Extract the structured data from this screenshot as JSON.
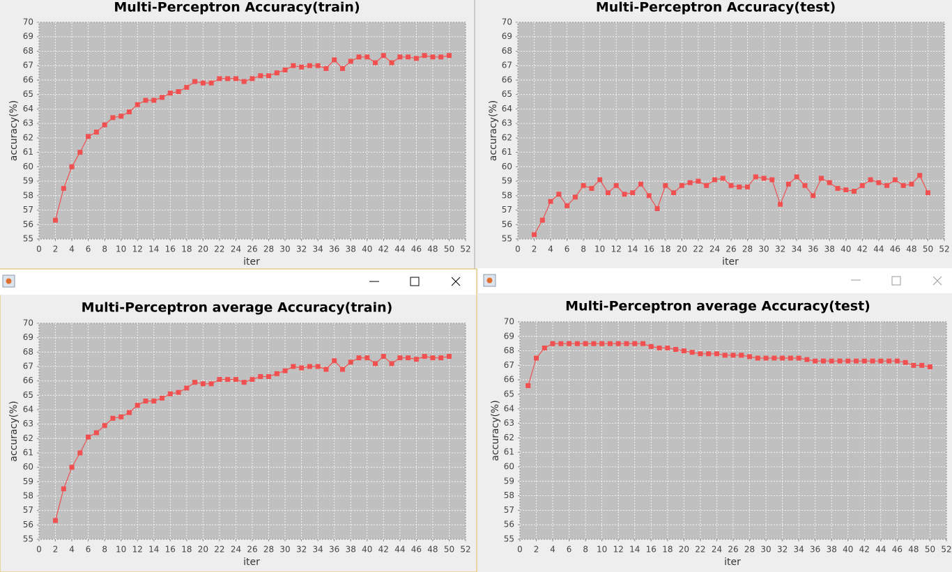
{
  "chart_data": [
    {
      "type": "line",
      "title": "Multi-Perceptron Accuracy(train)",
      "x_label": "iter",
      "y_label": "accuracy(%)",
      "x": [
        2,
        3,
        4,
        5,
        6,
        7,
        8,
        9,
        10,
        11,
        12,
        13,
        14,
        15,
        16,
        17,
        18,
        19,
        20,
        21,
        22,
        23,
        24,
        25,
        26,
        27,
        28,
        29,
        30,
        31,
        32,
        33,
        34,
        35,
        36,
        37,
        38,
        39,
        40,
        41,
        42,
        43,
        44,
        45,
        46,
        47,
        48,
        49,
        50
      ],
      "values": [
        56.3,
        58.5,
        60.0,
        61.0,
        62.1,
        62.4,
        62.9,
        63.4,
        63.5,
        63.8,
        64.3,
        64.6,
        64.6,
        64.8,
        65.1,
        65.2,
        65.5,
        65.9,
        65.8,
        65.8,
        66.1,
        66.1,
        66.1,
        65.9,
        66.1,
        66.3,
        66.3,
        66.5,
        66.7,
        67.0,
        66.9,
        67.0,
        67.0,
        66.8,
        67.4,
        66.8,
        67.3,
        67.6,
        67.6,
        67.2,
        67.7,
        67.2,
        67.6,
        67.6,
        67.5,
        67.7,
        67.6,
        67.6,
        67.7
      ],
      "color": "#f05050",
      "xlim": [
        0,
        52
      ],
      "ylim": [
        55,
        70
      ],
      "xticks": [
        0,
        2,
        4,
        6,
        8,
        10,
        12,
        14,
        16,
        18,
        20,
        22,
        24,
        26,
        28,
        30,
        32,
        34,
        36,
        38,
        40,
        42,
        44,
        46,
        48,
        50,
        52
      ],
      "yticks": [
        55,
        56,
        57,
        58,
        59,
        60,
        61,
        62,
        63,
        64,
        65,
        66,
        67,
        68,
        69,
        70
      ],
      "grid": true
    },
    {
      "type": "line",
      "title": "Multi-Perceptron Accuracy(test)",
      "x_label": "iter",
      "y_label": "accuracy(%)",
      "x": [
        2,
        3,
        4,
        5,
        6,
        7,
        8,
        9,
        10,
        11,
        12,
        13,
        14,
        15,
        16,
        17,
        18,
        19,
        20,
        21,
        22,
        23,
        24,
        25,
        26,
        27,
        28,
        29,
        30,
        31,
        32,
        33,
        34,
        35,
        36,
        37,
        38,
        39,
        40,
        41,
        42,
        43,
        44,
        45,
        46,
        47,
        48,
        49,
        50
      ],
      "values": [
        55.3,
        56.3,
        57.6,
        58.1,
        57.3,
        57.9,
        58.7,
        58.5,
        59.1,
        58.2,
        58.7,
        58.1,
        58.2,
        58.8,
        58.0,
        57.1,
        58.7,
        58.2,
        58.7,
        58.9,
        59.0,
        58.7,
        59.1,
        59.2,
        58.7,
        58.6,
        58.6,
        59.3,
        59.2,
        59.1,
        57.4,
        58.8,
        59.3,
        58.7,
        58.0,
        59.2,
        58.9,
        58.5,
        58.4,
        58.3,
        58.7,
        59.1,
        58.9,
        58.7,
        59.1,
        58.7,
        58.8,
        59.4,
        58.2
      ],
      "color": "#f05050",
      "xlim": [
        0,
        52
      ],
      "ylim": [
        55,
        70
      ],
      "xticks": [
        0,
        2,
        4,
        6,
        8,
        10,
        12,
        14,
        16,
        18,
        20,
        22,
        24,
        26,
        28,
        30,
        32,
        34,
        36,
        38,
        40,
        42,
        44,
        46,
        48,
        50,
        52
      ],
      "yticks": [
        55,
        56,
        57,
        58,
        59,
        60,
        61,
        62,
        63,
        64,
        65,
        66,
        67,
        68,
        69,
        70
      ],
      "grid": true
    },
    {
      "type": "line",
      "title": "Multi-Perceptron average Accuracy(train)",
      "x_label": "iter",
      "y_label": "accuracy(%)",
      "x": [
        2,
        3,
        4,
        5,
        6,
        7,
        8,
        9,
        10,
        11,
        12,
        13,
        14,
        15,
        16,
        17,
        18,
        19,
        20,
        21,
        22,
        23,
        24,
        25,
        26,
        27,
        28,
        29,
        30,
        31,
        32,
        33,
        34,
        35,
        36,
        37,
        38,
        39,
        40,
        41,
        42,
        43,
        44,
        45,
        46,
        47,
        48,
        49,
        50
      ],
      "values": [
        56.3,
        58.5,
        60.0,
        61.0,
        62.1,
        62.4,
        62.9,
        63.4,
        63.5,
        63.8,
        64.3,
        64.6,
        64.6,
        64.8,
        65.1,
        65.2,
        65.5,
        65.9,
        65.8,
        65.8,
        66.1,
        66.1,
        66.1,
        65.9,
        66.1,
        66.3,
        66.3,
        66.5,
        66.7,
        67.0,
        66.9,
        67.0,
        67.0,
        66.8,
        67.4,
        66.8,
        67.3,
        67.6,
        67.6,
        67.2,
        67.7,
        67.2,
        67.6,
        67.6,
        67.5,
        67.7,
        67.6,
        67.6,
        67.7
      ],
      "color": "#f05050",
      "xlim": [
        0,
        52
      ],
      "ylim": [
        55,
        70
      ],
      "xticks": [
        0,
        2,
        4,
        6,
        8,
        10,
        12,
        14,
        16,
        18,
        20,
        22,
        24,
        26,
        28,
        30,
        32,
        34,
        36,
        38,
        40,
        42,
        44,
        46,
        48,
        50,
        52
      ],
      "yticks": [
        55,
        56,
        57,
        58,
        59,
        60,
        61,
        62,
        63,
        64,
        65,
        66,
        67,
        68,
        69,
        70
      ],
      "grid": true
    },
    {
      "type": "line",
      "title": "Multi-Perceptron average Accuracy(test)",
      "x_label": "iter",
      "y_label": "accuracy(%)",
      "x": [
        1,
        2,
        3,
        4,
        5,
        6,
        7,
        8,
        9,
        10,
        11,
        12,
        13,
        14,
        15,
        16,
        17,
        18,
        19,
        20,
        21,
        22,
        23,
        24,
        25,
        26,
        27,
        28,
        29,
        30,
        31,
        32,
        33,
        34,
        35,
        36,
        37,
        38,
        39,
        40,
        41,
        42,
        43,
        44,
        45,
        46,
        47,
        48,
        49,
        50
      ],
      "values": [
        65.6,
        67.5,
        68.2,
        68.5,
        68.5,
        68.5,
        68.5,
        68.5,
        68.5,
        68.5,
        68.5,
        68.5,
        68.5,
        68.5,
        68.5,
        68.3,
        68.2,
        68.2,
        68.1,
        68.0,
        67.9,
        67.8,
        67.8,
        67.8,
        67.7,
        67.7,
        67.7,
        67.6,
        67.5,
        67.5,
        67.5,
        67.5,
        67.5,
        67.5,
        67.4,
        67.3,
        67.3,
        67.3,
        67.3,
        67.3,
        67.3,
        67.3,
        67.3,
        67.3,
        67.3,
        67.3,
        67.2,
        67.0,
        67.0,
        66.9
      ],
      "color": "#f05050",
      "xlim": [
        0,
        52
      ],
      "ylim": [
        55,
        70
      ],
      "xticks": [
        0,
        2,
        4,
        6,
        8,
        10,
        12,
        14,
        16,
        18,
        20,
        22,
        24,
        26,
        28,
        30,
        32,
        34,
        36,
        38,
        40,
        42,
        44,
        46,
        48,
        50,
        52
      ],
      "yticks": [
        55,
        56,
        57,
        58,
        59,
        60,
        61,
        62,
        63,
        64,
        65,
        66,
        67,
        68,
        69,
        70
      ],
      "grid": true
    }
  ]
}
